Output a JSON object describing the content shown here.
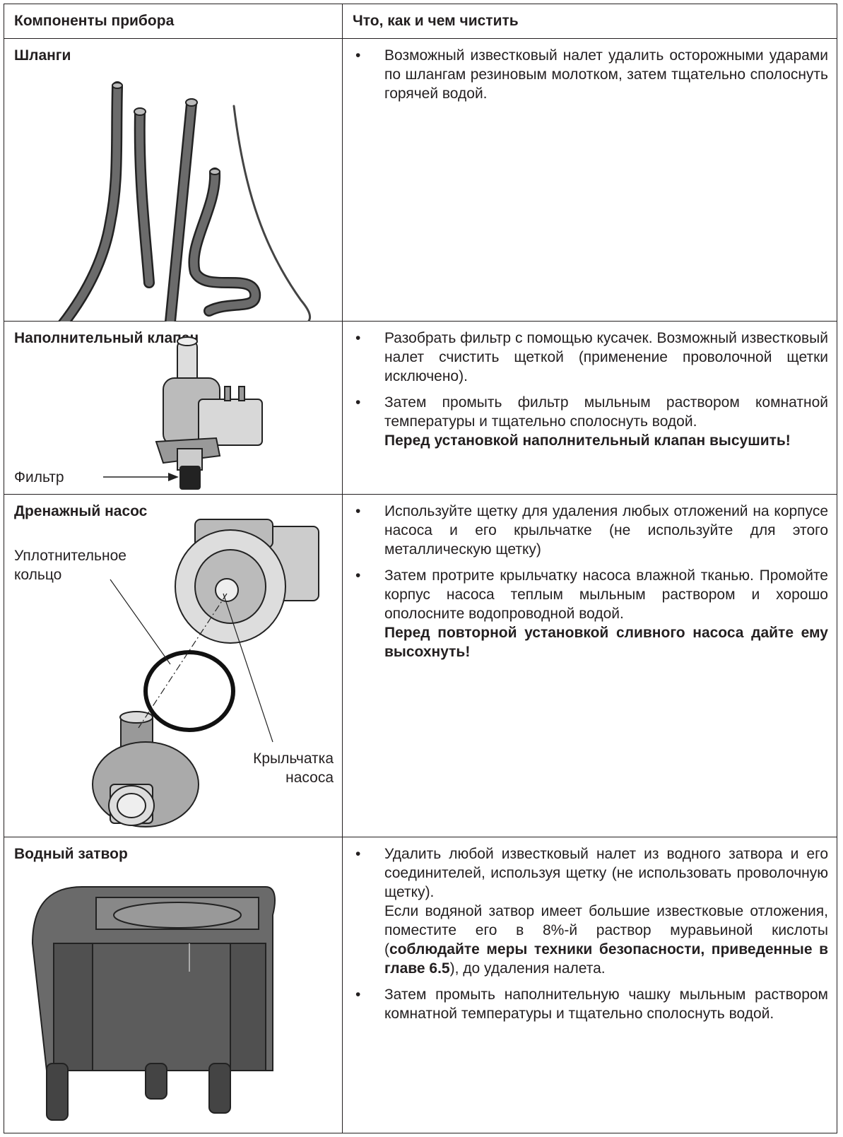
{
  "header": [
    "Компоненты прибора",
    "Что, как и чем чистить"
  ],
  "rows": [
    {
      "name": "Шланги",
      "bullets": [
        [
          [
            {
              "text": "Возможный известковый налет удалить осторожными ударами по шлангам резиновым молотком, затем тщательно сполоснуть горячей водой."
            }
          ]
        ]
      ]
    },
    {
      "name": "Наполнительный клапан",
      "labels": [
        "Фильтр"
      ],
      "bullets": [
        [
          [
            {
              "text": "Разобрать фильтр с помощью кусачек. Возможный известковый налет счистить щеткой (применение проволочной щетки исключено)."
            }
          ]
        ],
        [
          [
            {
              "text": "Затем промыть фильтр мыльным раствором комнатной температуры и тщательно сполоснуть водой."
            }
          ],
          [
            {
              "text": "Перед установкой наполнительный клапан высушить!",
              "bold": true
            }
          ]
        ]
      ]
    },
    {
      "name": "Дренажный насос",
      "labels": [
        "Уплотнительное кольцо",
        "Крыльчатка насоса"
      ],
      "bullets": [
        [
          [
            {
              "text": "Используйте щетку для удаления любых отложений на корпусе насоса и его крыльчатке (не используйте для этого металлическую щетку)"
            }
          ]
        ],
        [
          [
            {
              "text": "Затем протрите крыльчатку насоса влажной тканью. Промойте корпус насоса теплым мыльным раствором и хорошо ополосните водопроводной водой."
            }
          ],
          [
            {
              "text": "Перед повторной установкой сливного насоса дайте ему высохнуть!",
              "bold": true
            }
          ]
        ]
      ]
    },
    {
      "name": "Водный затвор",
      "bullets": [
        [
          [
            {
              "text": "Удалить любой известковый налет из водного затвора и его соединителей, используя щетку (не использовать проволочную щетку)."
            }
          ],
          [
            {
              "text": "Если водяной затвор имеет большие известковые отложения, поместите его в 8%-й раствор муравьиной кислоты ("
            },
            {
              "text": "соблюдайте меры техники безопасности, приведенные в главе 6.5",
              "bold": true
            },
            {
              "text": "), до удаления налета."
            }
          ]
        ],
        [
          [
            {
              "text": "Затем промыть наполнительную чашку мыльным раствором комнатной температуры и тщательно сполоснуть водой."
            }
          ]
        ]
      ]
    }
  ]
}
